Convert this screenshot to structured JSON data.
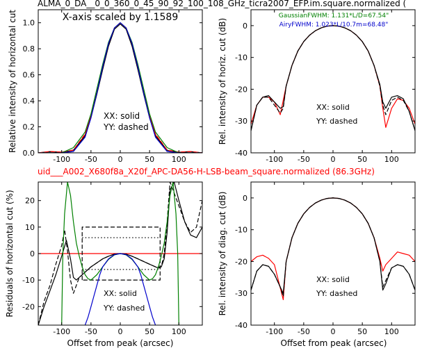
{
  "figure": {
    "title_top": "ALMA_0_DA__0_0_360_0_45_90_92_100_108_GHz_ticra2007_EFP.im.square.normalized (",
    "title_middle": "uid___A002_X680f8a_X20f_APC-DA56-H-LSB-beam_square.normalized (86.3GHz)",
    "title_middle_color": "#ff0000"
  },
  "colors": {
    "model_fit": "#ff0000",
    "measured": "#000000",
    "gaussian": "#008000",
    "airy": "#0000cc"
  },
  "chart_data": [
    {
      "id": "profile",
      "type": "line",
      "title": "",
      "annotation": "X-axis scaled by 1.1589",
      "xlabel": "",
      "ylabel": "Relative intensity of horizontal cut",
      "xlim": [
        -140,
        140
      ],
      "ylim": [
        0,
        1.1
      ],
      "xticks": [
        -100,
        -50,
        0,
        50,
        100
      ],
      "yticks": [
        0.0,
        0.2,
        0.4,
        0.6,
        0.8,
        1.0
      ],
      "legend_text": [
        "XX: solid",
        "YY: dashed"
      ],
      "series": [
        {
          "color": "red",
          "style": "solid",
          "x": [
            -140,
            -120,
            -100,
            -80,
            -60,
            -50,
            -40,
            -30,
            -20,
            -10,
            0,
            10,
            20,
            30,
            40,
            50,
            60,
            80,
            100,
            120,
            140
          ],
          "y": [
            0.0,
            0.01,
            0.005,
            0.02,
            0.14,
            0.28,
            0.46,
            0.65,
            0.83,
            0.96,
            1.0,
            0.96,
            0.83,
            0.65,
            0.46,
            0.28,
            0.14,
            0.02,
            0.005,
            0.01,
            0.0
          ]
        },
        {
          "color": "black",
          "style": "solid",
          "x": [
            -140,
            -120,
            -100,
            -80,
            -60,
            -50,
            -40,
            -30,
            -20,
            -10,
            0,
            10,
            20,
            30,
            40,
            50,
            60,
            80,
            100,
            120,
            140
          ],
          "y": [
            0.0,
            0.008,
            0.004,
            0.02,
            0.13,
            0.27,
            0.45,
            0.64,
            0.82,
            0.95,
            0.99,
            0.95,
            0.82,
            0.64,
            0.45,
            0.27,
            0.13,
            0.02,
            0.004,
            0.008,
            0.0
          ]
        },
        {
          "color": "red",
          "style": "dashed",
          "x": [
            -140,
            -120,
            -100,
            -80,
            -60,
            -50,
            -40,
            -30,
            -20,
            -10,
            0,
            10,
            20,
            30,
            40,
            50,
            60,
            80,
            100,
            120,
            140
          ],
          "y": [
            0.0,
            0.01,
            0.006,
            0.022,
            0.145,
            0.29,
            0.47,
            0.66,
            0.84,
            0.96,
            1.0,
            0.96,
            0.84,
            0.66,
            0.47,
            0.29,
            0.145,
            0.022,
            0.006,
            0.01,
            0.0
          ]
        },
        {
          "color": "green",
          "style": "solid",
          "x": [
            -140,
            -120,
            -100,
            -80,
            -60,
            -50,
            -40,
            -30,
            -20,
            -10,
            0,
            10,
            20,
            30,
            40,
            50,
            60,
            80,
            100,
            120,
            140
          ],
          "y": [
            0.0,
            0.0,
            0.0,
            0.04,
            0.16,
            0.3,
            0.49,
            0.68,
            0.85,
            0.96,
            1.0,
            0.96,
            0.85,
            0.68,
            0.49,
            0.3,
            0.16,
            0.04,
            0.0,
            0.0,
            0.0
          ]
        },
        {
          "color": "blue",
          "style": "solid",
          "x": [
            -140,
            -120,
            -100,
            -80,
            -60,
            -50,
            -40,
            -30,
            -20,
            -10,
            0,
            10,
            20,
            30,
            40,
            50,
            60,
            80,
            100,
            120,
            140
          ],
          "y": [
            0.0,
            0.0,
            0.0,
            0.01,
            0.12,
            0.27,
            0.46,
            0.66,
            0.84,
            0.96,
            1.0,
            0.96,
            0.84,
            0.66,
            0.46,
            0.27,
            0.12,
            0.01,
            0.0,
            0.0,
            0.0
          ]
        }
      ]
    },
    {
      "id": "horiz_db",
      "type": "line",
      "title": "",
      "xlabel": "",
      "ylabel": "Rel. intensity of horiz. cut (dB)",
      "xlim": [
        -140,
        140
      ],
      "ylim": [
        -40,
        5
      ],
      "xticks": [
        -100,
        -50,
        0,
        50,
        100
      ],
      "yticks": [
        -40,
        -30,
        -20,
        -10,
        0
      ],
      "annotations": [
        {
          "text": "GaussianFWHM: 1.131*L/D=67.54\"",
          "color": "green"
        },
        {
          "text": "AiryFWHM: 1.023*L/10.7m=68.48\"",
          "color": "blue"
        }
      ],
      "legend_text": [
        "XX: solid",
        "YY: dashed"
      ],
      "series": [
        {
          "color": "red",
          "style": "solid",
          "x": [
            -140,
            -130,
            -120,
            -110,
            -100,
            -90,
            -80,
            -70,
            -60,
            -50,
            -40,
            -30,
            -20,
            -10,
            0,
            10,
            20,
            30,
            40,
            50,
            60,
            70,
            80,
            85,
            90,
            100,
            110,
            120,
            130,
            140
          ],
          "y": [
            -31,
            -25,
            -22.5,
            -22.5,
            -24,
            -28,
            -19,
            -12.5,
            -8,
            -5,
            -3,
            -1.6,
            -0.7,
            -0.15,
            0,
            -0.15,
            -0.7,
            -1.6,
            -3,
            -5,
            -8,
            -12.5,
            -19,
            -26,
            -32,
            -26,
            -23,
            -23.5,
            -26,
            -31
          ]
        },
        {
          "color": "black",
          "style": "solid",
          "x": [
            -140,
            -130,
            -120,
            -110,
            -100,
            -90,
            -85,
            -80,
            -70,
            -60,
            -50,
            -40,
            -30,
            -20,
            -10,
            0,
            10,
            20,
            30,
            40,
            50,
            60,
            70,
            80,
            85,
            90,
            100,
            110,
            120,
            130,
            140
          ],
          "y": [
            -33,
            -25,
            -22.5,
            -22,
            -24,
            -26,
            -25.5,
            -19,
            -12.5,
            -8,
            -5,
            -3,
            -1.6,
            -0.7,
            -0.15,
            0,
            -0.15,
            -0.7,
            -1.6,
            -3,
            -5,
            -8,
            -12.5,
            -18.5,
            -24,
            -26,
            -22.5,
            -22,
            -23,
            -27,
            -33
          ]
        },
        {
          "color": "black",
          "style": "dashed",
          "x": [
            -140,
            -130,
            -120,
            -110,
            -100,
            -90,
            -85,
            -80,
            -70,
            -60,
            -50,
            -40,
            -30,
            -20,
            -10,
            0,
            10,
            20,
            30,
            40,
            50,
            60,
            70,
            80,
            85,
            90,
            100,
            110,
            120,
            130,
            140
          ],
          "y": [
            -33,
            -25,
            -22.5,
            -22.5,
            -25,
            -27.5,
            -26,
            -19,
            -12.5,
            -8,
            -5,
            -3,
            -1.6,
            -0.7,
            -0.15,
            0,
            -0.15,
            -0.7,
            -1.6,
            -3,
            -5,
            -8,
            -12.5,
            -19,
            -25,
            -28,
            -23.5,
            -22.5,
            -23.5,
            -27,
            -33
          ]
        }
      ],
      "gaussian_fwhm_arcsec": 67.54,
      "airy_fwhm_arcsec": 68.48
    },
    {
      "id": "residuals",
      "type": "line",
      "title": "",
      "xlabel": "Offset from peak (arcsec)",
      "ylabel": "Residuals of horizontal cut (%)",
      "xlim": [
        -140,
        140
      ],
      "ylim": [
        -27,
        27
      ],
      "xticks": [
        -100,
        -50,
        0,
        50,
        100
      ],
      "yticks": [
        -20,
        -10,
        0,
        10,
        20
      ],
      "legend_text": [
        "XX: solid",
        "YY: dashed"
      ],
      "series": [
        {
          "color": "red",
          "style": "solid",
          "x": [
            -140,
            140
          ],
          "y": [
            0,
            0
          ]
        },
        {
          "color": "black",
          "style": "solid",
          "x": [
            -140,
            -130,
            -120,
            -110,
            -100,
            -92,
            -85,
            -80,
            -75,
            -70,
            -60,
            -50,
            -40,
            -30,
            -20,
            -10,
            0,
            10,
            20,
            30,
            40,
            50,
            60,
            65,
            70,
            75,
            80,
            85,
            92,
            100,
            110,
            120,
            130,
            140
          ],
          "y": [
            -27,
            -20,
            -14,
            -8,
            -1,
            5,
            -2,
            -9,
            -10,
            -9,
            -7,
            -5,
            -3.5,
            -2,
            -1,
            -0.2,
            0,
            -0.2,
            -1,
            -2,
            -3,
            -4,
            -5,
            -5.5,
            -5,
            -2,
            8,
            24,
            27,
            20,
            12,
            7,
            6,
            10
          ]
        },
        {
          "color": "black",
          "style": "dashed",
          "x": [
            -140,
            -130,
            -120,
            -110,
            -100,
            -95,
            -90,
            -85,
            -80,
            -75,
            -70,
            -60,
            -50,
            -40,
            -30,
            -20,
            -10,
            0,
            10,
            20,
            30,
            40,
            50,
            60,
            70,
            75,
            80,
            85,
            90,
            100,
            110,
            120,
            130,
            140
          ],
          "y": [
            -27,
            -18,
            -12,
            -4,
            3,
            9,
            1,
            -10,
            -15,
            -12,
            -9,
            -7,
            -5,
            -3.5,
            -2,
            -1,
            -0.2,
            0,
            -0.2,
            -1,
            -2,
            -3,
            -4,
            -5,
            -5,
            0,
            12,
            27,
            24,
            18,
            12,
            8,
            10,
            20
          ]
        },
        {
          "color": "black",
          "style": "dashed",
          "x": [
            -65,
            -65,
            68,
            68,
            -65,
            -65,
            68,
            68
          ],
          "y": [
            -10,
            10,
            10,
            -10,
            -10,
            -10,
            -10,
            -10
          ]
        },
        {
          "color": "black",
          "style": "dotted",
          "x": [
            -65,
            68
          ],
          "y": [
            6,
            6
          ]
        },
        {
          "color": "black",
          "style": "dotted",
          "x": [
            -65,
            68
          ],
          "y": [
            -6,
            -6
          ]
        },
        {
          "color": "green",
          "style": "solid",
          "x": [
            -100,
            -98,
            -95,
            -90,
            -85,
            -80,
            -75,
            -70,
            -65,
            -60,
            -55,
            -50,
            -40,
            -30,
            -20,
            -10,
            0,
            10,
            20,
            30,
            40,
            50,
            55,
            60,
            65,
            70,
            75,
            80,
            85,
            90,
            95,
            98,
            100
          ],
          "y": [
            -27,
            0,
            15,
            27,
            22,
            12,
            4,
            -1,
            -5,
            -8,
            -9.5,
            -10,
            -8,
            -5,
            -2.2,
            -0.5,
            0,
            -0.5,
            -2.2,
            -5,
            -8,
            -10,
            -9.5,
            -8,
            -5,
            -1,
            4,
            12,
            22,
            27,
            15,
            0,
            -27
          ]
        },
        {
          "color": "blue",
          "style": "solid",
          "x": [
            -60,
            -55,
            -50,
            -45,
            -40,
            -35,
            -30,
            -20,
            -10,
            0,
            10,
            20,
            30,
            35,
            40,
            45,
            50,
            55,
            60
          ],
          "y": [
            -27,
            -24,
            -20,
            -16,
            -12,
            -8,
            -5,
            -2,
            -0.4,
            0,
            -0.4,
            -2,
            -5,
            -8,
            -12,
            -16,
            -20,
            -24,
            -27
          ]
        }
      ]
    },
    {
      "id": "diag_db",
      "type": "line",
      "title": "",
      "xlabel": "Offset from peak (arcsec)",
      "ylabel": "Rel. intensity of diag. cut (dB)",
      "xlim": [
        -140,
        140
      ],
      "ylim": [
        -40,
        5
      ],
      "xticks": [
        -100,
        -50,
        0,
        50,
        100
      ],
      "yticks": [
        -40,
        -30,
        -20,
        -10,
        0
      ],
      "legend_text": [
        "XX: solid",
        "YY: dashed"
      ],
      "series": [
        {
          "color": "red",
          "style": "solid",
          "x": [
            -140,
            -130,
            -120,
            -110,
            -100,
            -85,
            -80,
            -70,
            -60,
            -50,
            -40,
            -30,
            -20,
            -10,
            0,
            10,
            20,
            30,
            40,
            50,
            60,
            70,
            80,
            85,
            90,
            100,
            110,
            120,
            130,
            140
          ],
          "y": [
            -20,
            -18.5,
            -18,
            -19,
            -21,
            -32,
            -20,
            -12.5,
            -8,
            -5,
            -3,
            -1.6,
            -0.7,
            -0.15,
            0,
            -0.15,
            -0.7,
            -1.6,
            -3,
            -5,
            -8,
            -12.5,
            -19,
            -23,
            -21,
            -19,
            -17,
            -17.5,
            -18,
            -20
          ]
        },
        {
          "color": "black",
          "style": "solid",
          "x": [
            -140,
            -130,
            -120,
            -110,
            -100,
            -90,
            -85,
            -80,
            -70,
            -60,
            -50,
            -40,
            -30,
            -20,
            -10,
            0,
            10,
            20,
            30,
            40,
            50,
            60,
            70,
            80,
            85,
            90,
            100,
            110,
            120,
            130,
            140
          ],
          "y": [
            -29,
            -23,
            -21,
            -21.5,
            -24,
            -28,
            -30,
            -20,
            -12.5,
            -8,
            -5,
            -3,
            -1.6,
            -0.7,
            -0.15,
            0,
            -0.15,
            -0.7,
            -1.6,
            -3,
            -5,
            -8,
            -12.5,
            -20,
            -29,
            -27,
            -22,
            -21,
            -21.5,
            -24,
            -29
          ]
        },
        {
          "color": "black",
          "style": "dashed",
          "x": [
            -140,
            -130,
            -120,
            -110,
            -100,
            -90,
            -85,
            -80,
            -70,
            -60,
            -50,
            -40,
            -30,
            -20,
            -10,
            0,
            10,
            20,
            30,
            40,
            50,
            60,
            70,
            80,
            85,
            90,
            100,
            110,
            120,
            130,
            140
          ],
          "y": [
            -29,
            -23,
            -21,
            -21.5,
            -24,
            -28,
            -31,
            -20,
            -12.5,
            -8,
            -5,
            -3,
            -1.6,
            -0.7,
            -0.15,
            0,
            -0.15,
            -0.7,
            -1.6,
            -3,
            -5,
            -8,
            -12.5,
            -20,
            -28,
            -26,
            -22,
            -21,
            -21.5,
            -24,
            -29
          ]
        }
      ]
    }
  ]
}
